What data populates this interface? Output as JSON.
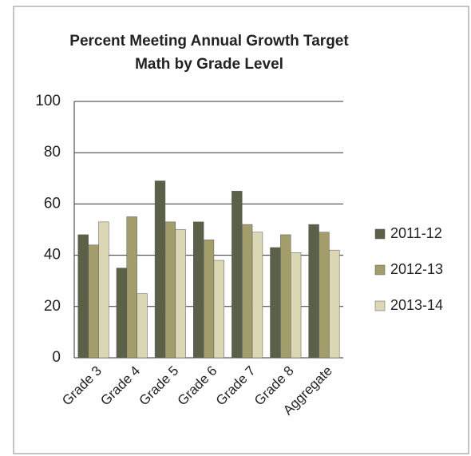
{
  "chart_data": {
    "type": "bar",
    "title": "Percent Meeting Annual Growth Target",
    "subtitle": "Math by Grade Level",
    "categories": [
      "Grade 3",
      "Grade 4",
      "Grade 5",
      "Grade 6",
      "Grade 7",
      "Grade 8",
      "Aggregate"
    ],
    "series": [
      {
        "name": "2011-12",
        "color": "#5b6149",
        "values": [
          48,
          35,
          69,
          53,
          65,
          43,
          52
        ]
      },
      {
        "name": "2012-13",
        "color": "#a39c6b",
        "values": [
          44,
          55,
          53,
          46,
          52,
          48,
          49
        ]
      },
      {
        "name": "2013-14",
        "color": "#dbd6b4",
        "values": [
          53,
          25,
          50,
          38,
          49,
          41,
          42
        ]
      }
    ],
    "ylim": [
      0,
      100
    ],
    "yticks": [
      0,
      20,
      40,
      60,
      80,
      100
    ],
    "grid": true,
    "legend": "right"
  }
}
